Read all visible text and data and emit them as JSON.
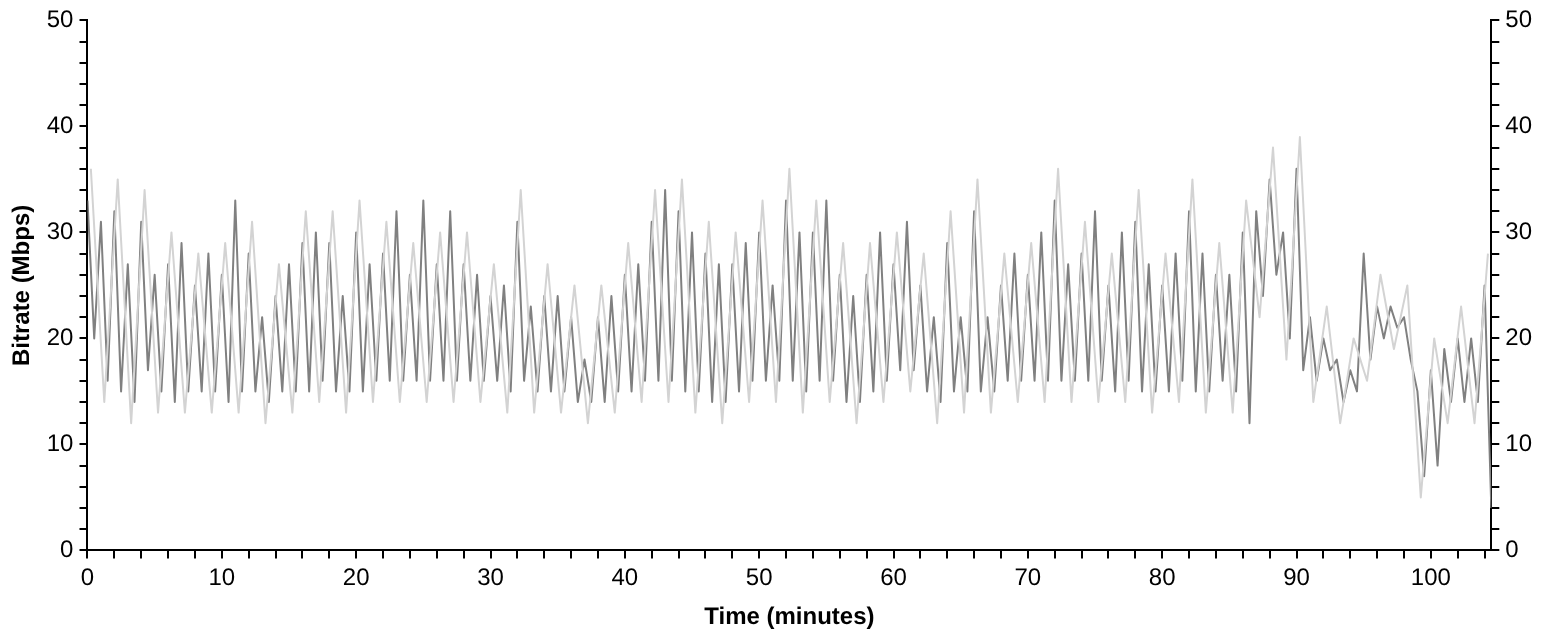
{
  "chart_data": {
    "type": "line",
    "xlabel": "Time (minutes)",
    "ylabel": "Bitrate (Mbps)",
    "grid": false,
    "legend": false,
    "marker": "none",
    "line_style": "solid",
    "xlim": [
      0,
      104.5
    ],
    "xticks": [
      0,
      {
        "value": 2,
        "label": null
      },
      {
        "value": 4,
        "label": null
      },
      {
        "value": 6,
        "label": null
      },
      {
        "value": 8,
        "label": null
      },
      10,
      {
        "value": 12,
        "label": null
      },
      {
        "value": 14,
        "label": null
      },
      {
        "value": 16,
        "label": null
      },
      {
        "value": 18,
        "label": null
      },
      20,
      {
        "value": 22,
        "label": null
      },
      {
        "value": 24,
        "label": null
      },
      {
        "value": 26,
        "label": null
      },
      {
        "value": 28,
        "label": null
      },
      30,
      {
        "value": 32,
        "label": null
      },
      {
        "value": 34,
        "label": null
      },
      {
        "value": 36,
        "label": null
      },
      {
        "value": 38,
        "label": null
      },
      40,
      {
        "value": 42,
        "label": null
      },
      {
        "value": 44,
        "label": null
      },
      {
        "value": 46,
        "label": null
      },
      {
        "value": 48,
        "label": null
      },
      50,
      {
        "value": 52,
        "label": null
      },
      {
        "value": 54,
        "label": null
      },
      {
        "value": 56,
        "label": null
      },
      {
        "value": 58,
        "label": null
      },
      60,
      {
        "value": 62,
        "label": null
      },
      {
        "value": 64,
        "label": null
      },
      {
        "value": 66,
        "label": null
      },
      {
        "value": 68,
        "label": null
      },
      70,
      {
        "value": 72,
        "label": null
      },
      {
        "value": 74,
        "label": null
      },
      {
        "value": 76,
        "label": null
      },
      {
        "value": 78,
        "label": null
      },
      80,
      {
        "value": 82,
        "label": null
      },
      {
        "value": 84,
        "label": null
      },
      {
        "value": 86,
        "label": null
      },
      {
        "value": 88,
        "label": null
      },
      90,
      {
        "value": 92,
        "label": null
      },
      {
        "value": 94,
        "label": null
      },
      {
        "value": 96,
        "label": null
      },
      {
        "value": 98,
        "label": null
      },
      100,
      {
        "value": 102,
        "label": null
      },
      {
        "value": 104,
        "label": null
      }
    ],
    "ylim": [
      0,
      50
    ],
    "yticks": [
      0,
      {
        "value": 2,
        "label": null
      },
      {
        "value": 4,
        "label": null
      },
      {
        "value": 6,
        "label": null
      },
      {
        "value": 8,
        "label": null
      },
      10,
      {
        "value": 12,
        "label": null
      },
      {
        "value": 14,
        "label": null
      },
      {
        "value": 16,
        "label": null
      },
      {
        "value": 18,
        "label": null
      },
      20,
      {
        "value": 22,
        "label": null
      },
      {
        "value": 24,
        "label": null
      },
      {
        "value": 26,
        "label": null
      },
      {
        "value": 28,
        "label": null
      },
      30,
      {
        "value": 32,
        "label": null
      },
      {
        "value": 34,
        "label": null
      },
      {
        "value": 36,
        "label": null
      },
      {
        "value": 38,
        "label": null
      },
      40,
      {
        "value": 42,
        "label": null
      },
      {
        "value": 44,
        "label": null
      },
      {
        "value": 46,
        "label": null
      },
      {
        "value": 48,
        "label": null
      },
      50
    ],
    "y2lim": [
      0,
      50
    ],
    "y2ticks": [
      0,
      {
        "value": 2,
        "label": null
      },
      {
        "value": 4,
        "label": null
      },
      {
        "value": 6,
        "label": null
      },
      {
        "value": 8,
        "label": null
      },
      10,
      {
        "value": 12,
        "label": null
      },
      {
        "value": 14,
        "label": null
      },
      {
        "value": 16,
        "label": null
      },
      {
        "value": 18,
        "label": null
      },
      20,
      {
        "value": 22,
        "label": null
      },
      {
        "value": 24,
        "label": null
      },
      {
        "value": 26,
        "label": null
      },
      {
        "value": 28,
        "label": null
      },
      30,
      {
        "value": 32,
        "label": null
      },
      {
        "value": 34,
        "label": null
      },
      {
        "value": 36,
        "label": null
      },
      {
        "value": 38,
        "label": null
      },
      40,
      {
        "value": 42,
        "label": null
      },
      {
        "value": 44,
        "label": null
      },
      {
        "value": 46,
        "label": null
      },
      {
        "value": 48,
        "label": null
      },
      50
    ],
    "series": [
      {
        "color": "#d3d3d3",
        "x": [
          0.25,
          1.25,
          2.25,
          3.25,
          4.25,
          5.25,
          6.25,
          7.25,
          8.25,
          9.25,
          10.25,
          11.25,
          12.25,
          13.25,
          14.25,
          15.25,
          16.25,
          17.25,
          18.25,
          19.25,
          20.25,
          21.25,
          22.25,
          23.25,
          24.25,
          25.25,
          26.25,
          27.25,
          28.25,
          29.25,
          30.25,
          31.25,
          32.25,
          33.25,
          34.25,
          35.25,
          36.25,
          37.25,
          38.25,
          39.25,
          40.25,
          41.25,
          42.25,
          43.25,
          44.25,
          45.25,
          46.25,
          47.25,
          48.25,
          49.25,
          50.25,
          51.25,
          52.25,
          53.25,
          54.25,
          55.25,
          56.25,
          57.25,
          58.25,
          59.25,
          60.25,
          61.25,
          62.25,
          63.25,
          64.25,
          65.25,
          66.25,
          67.25,
          68.25,
          69.25,
          70.25,
          71.25,
          72.25,
          73.25,
          74.25,
          75.25,
          76.25,
          77.25,
          78.25,
          79.25,
          80.25,
          81.25,
          82.25,
          83.25,
          84.25,
          85.25,
          86.25,
          87.25,
          88.25,
          89.25,
          90.25,
          91.25,
          92.25,
          93.25,
          94.25,
          95.25,
          96.25,
          97.25,
          98.25,
          99.25,
          100.25,
          101.25,
          102.25,
          103.25,
          104.25
        ],
        "values": [
          36,
          14,
          35,
          12,
          34,
          13,
          30,
          13,
          28,
          13,
          29,
          13,
          31,
          12,
          27,
          13,
          32,
          14,
          32,
          13,
          33,
          14,
          31,
          14,
          29,
          14,
          30,
          14,
          30,
          14,
          27,
          13,
          34,
          13,
          27,
          13,
          25,
          12,
          25,
          13,
          29,
          14,
          34,
          14,
          35,
          13,
          31,
          12,
          30,
          14,
          33,
          14,
          36,
          13,
          33,
          14,
          29,
          12,
          29,
          14,
          30,
          15,
          28,
          12,
          32,
          13,
          35,
          13,
          28,
          14,
          29,
          14,
          36,
          14,
          31,
          14,
          28,
          14,
          34,
          13,
          28,
          14,
          35,
          13,
          29,
          13,
          33,
          22,
          38,
          18,
          39,
          14,
          23,
          12,
          20,
          16,
          26,
          19,
          25,
          5,
          20,
          12,
          23,
          12,
          28
        ]
      },
      {
        "color": "#808080",
        "x": [
          0,
          0.5,
          1,
          1.5,
          2,
          2.5,
          3,
          3.5,
          4,
          4.5,
          5,
          5.5,
          6,
          6.5,
          7,
          7.5,
          8,
          8.5,
          9,
          9.5,
          10,
          10.5,
          11,
          11.5,
          12,
          12.5,
          13,
          13.5,
          14,
          14.5,
          15,
          15.5,
          16,
          16.5,
          17,
          17.5,
          18,
          18.5,
          19,
          19.5,
          20,
          20.5,
          21,
          21.5,
          22,
          22.5,
          23,
          23.5,
          24,
          24.5,
          25,
          25.5,
          26,
          26.5,
          27,
          27.5,
          28,
          28.5,
          29,
          29.5,
          30,
          30.5,
          31,
          31.5,
          32,
          32.5,
          33,
          33.5,
          34,
          34.5,
          35,
          35.5,
          36,
          36.5,
          37,
          37.5,
          38,
          38.5,
          39,
          39.5,
          40,
          40.5,
          41,
          41.5,
          42,
          42.5,
          43,
          43.5,
          44,
          44.5,
          45,
          45.5,
          46,
          46.5,
          47,
          47.5,
          48,
          48.5,
          49,
          49.5,
          50,
          50.5,
          51,
          51.5,
          52,
          52.5,
          53,
          53.5,
          54,
          54.5,
          55,
          55.5,
          56,
          56.5,
          57,
          57.5,
          58,
          58.5,
          59,
          59.5,
          60,
          60.5,
          61,
          61.5,
          62,
          62.5,
          63,
          63.5,
          64,
          64.5,
          65,
          65.5,
          66,
          66.5,
          67,
          67.5,
          68,
          68.5,
          69,
          69.5,
          70,
          70.5,
          71,
          71.5,
          72,
          72.5,
          73,
          73.5,
          74,
          74.5,
          75,
          75.5,
          76,
          76.5,
          77,
          77.5,
          78,
          78.5,
          79,
          79.5,
          80,
          80.5,
          81,
          81.5,
          82,
          82.5,
          83,
          83.5,
          84,
          84.5,
          85,
          85.5,
          86,
          86.5,
          87,
          87.5,
          88,
          88.5,
          89,
          89.5,
          90,
          90.5,
          91,
          91.5,
          92,
          92.5,
          93,
          93.5,
          94,
          94.5,
          95,
          95.5,
          96,
          96.5,
          97,
          97.5,
          98,
          98.5,
          99,
          99.5,
          100,
          100.5,
          101,
          101.5,
          102,
          102.5,
          103,
          103.5,
          104,
          104.5
        ],
        "values": [
          33,
          20,
          31,
          16,
          32,
          15,
          27,
          14,
          31,
          17,
          26,
          15,
          27,
          14,
          29,
          15,
          25,
          15,
          28,
          15,
          26,
          14,
          33,
          15,
          28,
          15,
          22,
          14,
          24,
          15,
          27,
          15,
          29,
          15,
          30,
          16,
          29,
          15,
          24,
          15,
          30,
          15,
          27,
          16,
          28,
          16,
          32,
          16,
          26,
          16,
          33,
          16,
          27,
          16,
          32,
          16,
          27,
          16,
          26,
          16,
          24,
          16,
          25,
          15,
          31,
          16,
          23,
          15,
          24,
          15,
          24,
          15,
          22,
          14,
          18,
          14,
          22,
          14,
          24,
          15,
          26,
          15,
          27,
          16,
          31,
          16,
          34,
          16,
          32,
          15,
          30,
          15,
          28,
          14,
          27,
          14,
          27,
          15,
          29,
          16,
          30,
          16,
          25,
          16,
          33,
          16,
          30,
          15,
          30,
          16,
          33,
          16,
          26,
          14,
          24,
          14,
          26,
          15,
          30,
          16,
          27,
          17,
          31,
          17,
          25,
          15,
          22,
          14,
          29,
          15,
          22,
          15,
          32,
          15,
          22,
          15,
          25,
          16,
          28,
          16,
          26,
          16,
          30,
          16,
          33,
          16,
          27,
          16,
          28,
          16,
          32,
          16,
          25,
          15,
          30,
          16,
          31,
          15,
          27,
          15,
          25,
          15,
          28,
          16,
          32,
          15,
          28,
          15,
          26,
          16,
          26,
          15,
          30,
          12,
          32,
          24,
          35,
          26,
          30,
          20,
          36,
          17,
          22,
          16,
          20,
          17,
          18,
          14,
          17,
          15,
          28,
          18,
          23,
          20,
          23,
          21,
          22,
          18,
          15,
          7,
          17,
          8,
          19,
          14,
          20,
          14,
          20,
          14,
          25,
          4
        ]
      }
    ]
  }
}
